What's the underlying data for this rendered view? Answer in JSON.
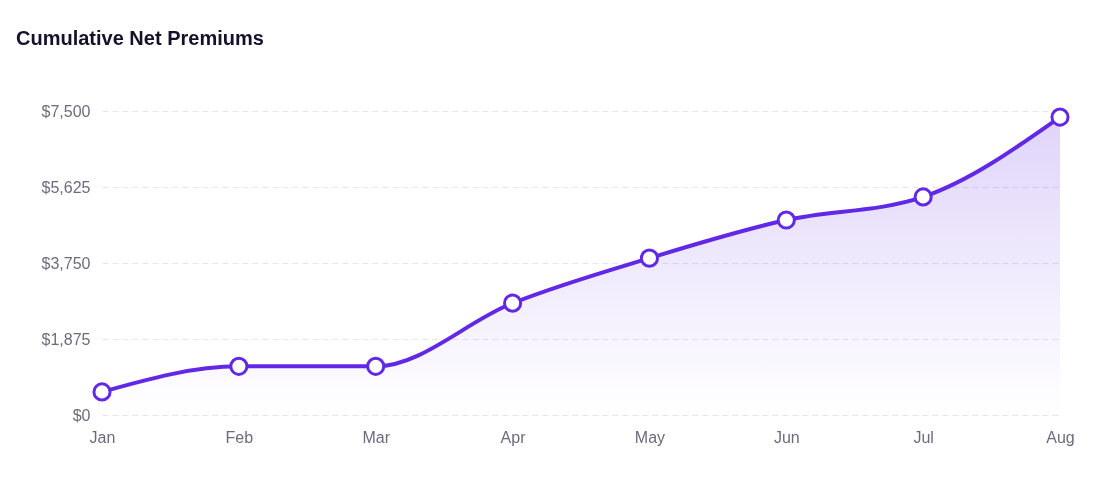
{
  "chart_data": {
    "type": "area",
    "title": "Cumulative Net Premiums",
    "categories": [
      "Jan",
      "Feb",
      "Mar",
      "Apr",
      "May",
      "Jun",
      "Jul",
      "Aug"
    ],
    "series": [
      {
        "color": "#6128e6",
        "values": [
          570,
          1200,
          1200,
          2760,
          3870,
          4810,
          5380,
          7350
        ]
      }
    ],
    "ylim": [
      0,
      7500
    ],
    "yticks": [
      {
        "value": 0,
        "label": "$0"
      },
      {
        "value": 1875,
        "label": "$1,875"
      },
      {
        "value": 3750,
        "label": "$3,750"
      },
      {
        "value": 5625,
        "label": "$5,625"
      },
      {
        "value": 7500,
        "label": "$7,500"
      }
    ],
    "grid": "y",
    "marker": "circle",
    "line_style": "solid"
  }
}
